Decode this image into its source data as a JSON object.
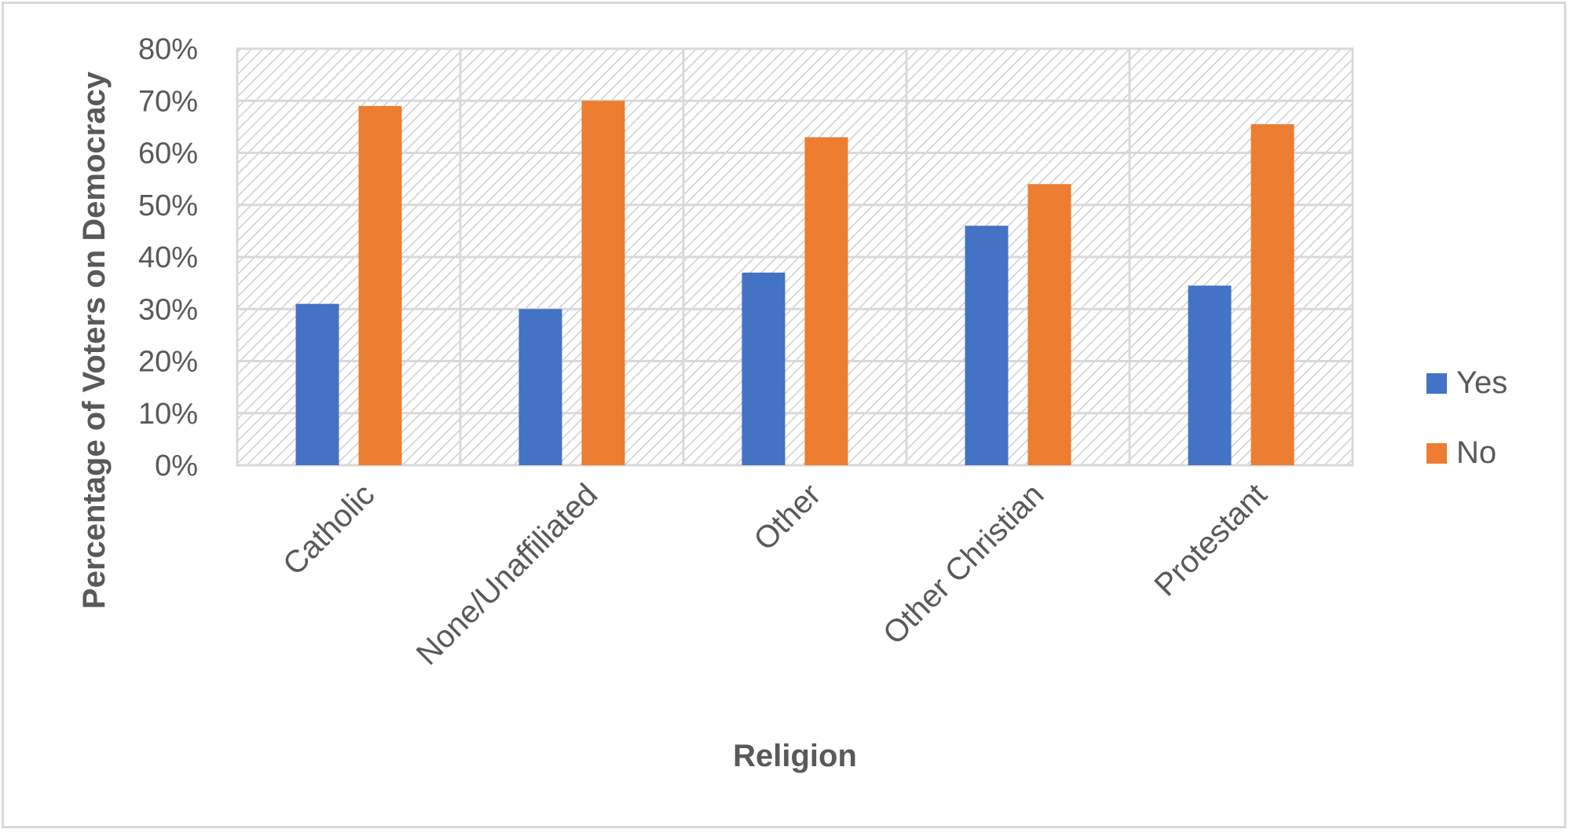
{
  "chart_data": {
    "type": "bar",
    "title": "",
    "xlabel": "Religion",
    "ylabel": "Percentage of Voters on Democracy",
    "ylim": [
      0,
      0.8
    ],
    "yticks": [
      "0%",
      "10%",
      "20%",
      "30%",
      "40%",
      "50%",
      "60%",
      "70%",
      "80%"
    ],
    "categories": [
      "Catholic",
      "None/Unaffiliated",
      "Other",
      "Other Christian",
      "Protestant"
    ],
    "series": [
      {
        "name": "Yes",
        "color": "#4472c4",
        "values": [
          0.31,
          0.3,
          0.37,
          0.46,
          0.345
        ]
      },
      {
        "name": "No",
        "color": "#ed7d31",
        "values": [
          0.69,
          0.7,
          0.63,
          0.54,
          0.655
        ]
      }
    ],
    "grid": true,
    "plot_area_pattern": "diagonal-hatch",
    "legend_position": "right"
  }
}
